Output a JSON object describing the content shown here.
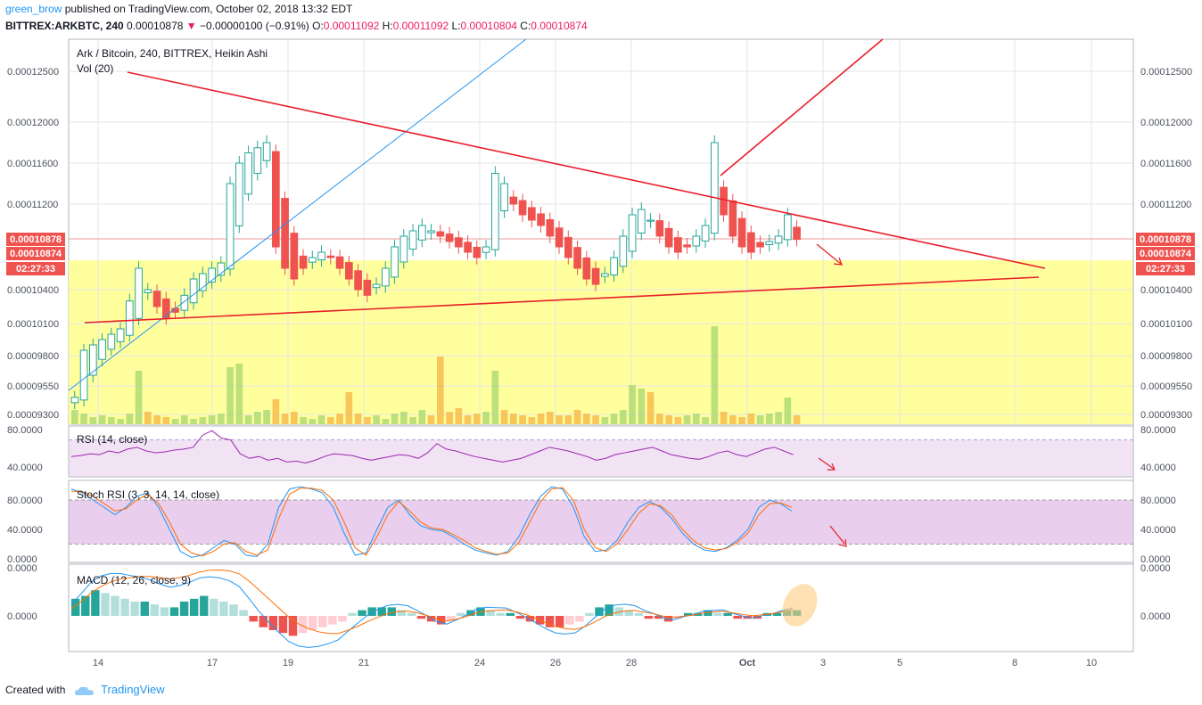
{
  "header": {
    "author": "green_brow",
    "published_text": "published on TradingView.com, October 02, 2018 13:32 EDT",
    "symbol": "BITTREX:ARKBTC, 240",
    "last": "0.00010878",
    "change_arrow": "▼",
    "change": "−0.00000100 (−0.91%)",
    "o_label": "O:",
    "o": "0.00011092",
    "h_label": "H:",
    "h": "0.00011092",
    "l_label": "L:",
    "l": "0.00010804",
    "c_label": "C:",
    "c": "0.00010874"
  },
  "footer": {
    "created_with": "Created with",
    "brand": "TradingView"
  },
  "colors": {
    "up": "#26a69a",
    "down": "#ef5350",
    "zone": "#ffff8d",
    "trend": "#e91e2a",
    "ma_blue": "#2196f3",
    "signal_orange": "#ff6d00",
    "rsi_line": "#9c27b0",
    "badge": "#ef5350"
  },
  "chart_data": [
    {
      "type": "candlestick",
      "title": "Ark / Bitcoin, 240, BITTREX, Heikin Ashi",
      "volume_label": "Vol (20)",
      "price_ticks": [
        "0.00012500",
        "0.00012000",
        "0.00011600",
        "0.00011200",
        "0.00010400",
        "0.00010100",
        "0.00009800",
        "0.00009550",
        "0.00009300"
      ],
      "price_range": [
        9.2e-05,
        0.000129
      ],
      "badge_prices": [
        "0.00010878",
        "0.00010874"
      ],
      "countdown": "02:27:33",
      "x_ticks": [
        "14",
        "17",
        "19",
        "21",
        "24",
        "26",
        "28",
        "Oct",
        "3",
        "5",
        "8",
        "10"
      ],
      "close_series": [
        9.45e-05,
        9.85e-05,
        9.9e-05,
        9.95e-05,
        0.0001,
        0.0001005,
        0.000103,
        0.000106,
        0.000104,
        0.0001025,
        0.0001015,
        0.000102,
        0.0001035,
        0.000105,
        0.0001055,
        0.000106,
        0.0001065,
        0.000114,
        0.000116,
        0.000117,
        0.0001175,
        0.000118,
        0.000108,
        0.000106,
        0.000105,
        0.000106,
        0.000107,
        0.0001075,
        0.000107,
        0.000106,
        0.000105,
        0.000104,
        0.0001035,
        0.0001045,
        0.000106,
        0.000108,
        0.000109,
        0.0001095,
        0.00011,
        0.0001095,
        0.000109,
        0.0001085,
        0.000108,
        0.0001075,
        0.000107,
        0.000108,
        0.000115,
        0.000114,
        0.000112,
        0.000111,
        0.0001105,
        0.00011,
        0.000109,
        0.000108,
        0.000107,
        0.000106,
        0.000105,
        0.0001045,
        0.0001055,
        0.000107,
        0.000109,
        0.000111,
        0.0001115,
        0.0001105,
        0.000109,
        0.000108,
        0.0001075,
        0.000108,
        0.000109,
        0.00011,
        0.000118,
        0.000111,
        0.000109,
        0.000108,
        0.0001075,
        0.000108,
        0.0001085,
        0.000109,
        0.000111,
        0.0001087
      ],
      "volume_series": [
        8,
        6,
        4,
        5,
        4,
        3,
        6,
        30,
        7,
        5,
        4,
        3,
        5,
        3,
        4,
        5,
        6,
        32,
        34,
        5,
        7,
        8,
        14,
        6,
        7,
        4,
        3,
        5,
        4,
        6,
        18,
        6,
        4,
        5,
        3,
        6,
        7,
        4,
        8,
        5,
        38,
        7,
        9,
        5,
        6,
        7,
        30,
        8,
        6,
        5,
        4,
        6,
        7,
        5,
        5,
        8,
        6,
        5,
        4,
        6,
        8,
        22,
        20,
        18,
        6,
        5,
        4,
        5,
        6,
        4,
        55,
        7,
        5,
        4,
        6,
        5,
        6,
        7,
        15,
        5
      ]
    },
    {
      "type": "line",
      "title": "RSI (14, close)",
      "y_ticks": [
        "80.0000",
        "40.0000"
      ],
      "ylim": [
        30,
        85
      ],
      "band": [
        30,
        70
      ],
      "series": [
        {
          "name": "RSI",
          "values": [
            52,
            53,
            55,
            54,
            58,
            56,
            60,
            62,
            58,
            56,
            57,
            59,
            60,
            62,
            75,
            80,
            72,
            70,
            55,
            50,
            52,
            48,
            50,
            46,
            47,
            45,
            48,
            52,
            55,
            54,
            53,
            50,
            48,
            50,
            52,
            54,
            53,
            50,
            56,
            66,
            60,
            58,
            55,
            52,
            50,
            48,
            46,
            48,
            50,
            54,
            58,
            62,
            60,
            58,
            55,
            52,
            48,
            50,
            54,
            56,
            58,
            60,
            62,
            58,
            54,
            52,
            50,
            49,
            52,
            56,
            58,
            54,
            52,
            56,
            60,
            62,
            58,
            54
          ]
        }
      ]
    },
    {
      "type": "line",
      "title": "Stoch RSI (3, 3, 14, 14, close)",
      "y_ticks": [
        "80.0000",
        "40.0000",
        "0.0000"
      ],
      "ylim": [
        -3,
        103
      ],
      "band": [
        20,
        80
      ],
      "series": [
        {
          "name": "K",
          "values": [
            95,
            90,
            80,
            70,
            60,
            70,
            85,
            90,
            70,
            40,
            10,
            2,
            5,
            15,
            25,
            20,
            5,
            3,
            20,
            70,
            95,
            98,
            95,
            90,
            70,
            35,
            5,
            8,
            40,
            70,
            80,
            60,
            45,
            40,
            38,
            30,
            20,
            12,
            8,
            5,
            10,
            30,
            60,
            85,
            98,
            95,
            70,
            30,
            10,
            12,
            25,
            50,
            70,
            78,
            70,
            55,
            35,
            20,
            12,
            10,
            15,
            25,
            40,
            70,
            80,
            75,
            65
          ]
        },
        {
          "name": "D",
          "values": [
            92,
            91,
            85,
            75,
            65,
            68,
            80,
            88,
            75,
            50,
            20,
            8,
            4,
            10,
            20,
            22,
            10,
            5,
            12,
            55,
            88,
            96,
            96,
            93,
            80,
            50,
            15,
            5,
            30,
            60,
            78,
            65,
            50,
            42,
            40,
            33,
            25,
            15,
            10,
            6,
            8,
            22,
            50,
            78,
            95,
            97,
            80,
            40,
            15,
            10,
            20,
            40,
            62,
            75,
            72,
            60,
            40,
            25,
            15,
            12,
            14,
            22,
            35,
            60,
            75,
            76,
            70
          ]
        }
      ]
    },
    {
      "type": "bar",
      "title": "MACD (12, 26, close, 9)",
      "y_ticks": [
        "0.0000",
        "0.0000"
      ],
      "histogram": [
        6,
        7,
        9,
        8,
        7,
        6,
        5,
        5,
        4,
        3,
        3,
        5,
        6,
        7,
        6,
        5,
        4,
        2,
        -2,
        -4,
        -5,
        -6,
        -7,
        -6,
        -5,
        -4,
        -3,
        -2,
        1,
        2,
        3,
        3,
        3,
        2,
        1,
        -1,
        -2,
        -3,
        -2,
        1,
        2,
        3,
        2,
        1,
        1,
        -1,
        -2,
        -3,
        -4,
        -4,
        -3,
        -2,
        1,
        3,
        4,
        3,
        2,
        1,
        -1,
        -1,
        -2,
        -1,
        1,
        1,
        2,
        1,
        1,
        -1,
        -1,
        -1,
        1,
        1,
        2,
        2
      ]
    }
  ]
}
